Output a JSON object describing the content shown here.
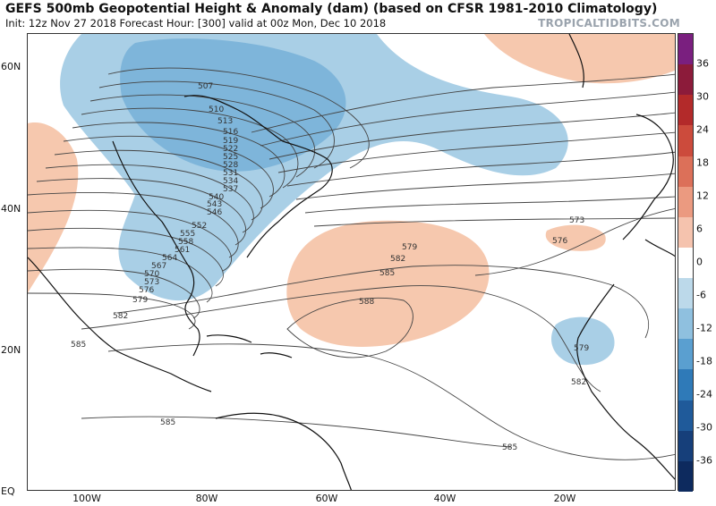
{
  "header": {
    "title": "GEFS 500mb Geopotential Height & Anomaly (dam) (based on CFSR 1981-2010 Climatology)",
    "subtitle": "Init: 12z Nov 27 2018   Forecast Hour: [300]   valid at 00z Mon, Dec 10 2018",
    "brand": "TROPICALTIDBITS.COM"
  },
  "axes": {
    "lat_labels": [
      "60N",
      "40N",
      "20N",
      "EQ"
    ],
    "lon_labels": [
      "100W",
      "80W",
      "60W",
      "40W",
      "20W"
    ]
  },
  "colorbar": {
    "labels": [
      "36",
      "30",
      "24",
      "18",
      "12",
      "6",
      "0",
      "-6",
      "-12",
      "-18",
      "-24",
      "-30",
      "-36"
    ],
    "colors": [
      "#7a1f7f",
      "#8c1b3a",
      "#b32a2a",
      "#cc4b3c",
      "#dc7059",
      "#eb9a80",
      "#f5c3ae",
      "#ffffff",
      "#bcd9ea",
      "#8fc0df",
      "#5a9fd0",
      "#2f7ab8",
      "#1f5a9a",
      "#163f7a",
      "#0d2a5e"
    ]
  },
  "contour_labels": {
    "stack_north": [
      "507",
      "510",
      "513",
      "516",
      "519",
      "522",
      "525",
      "528",
      "531",
      "534",
      "537",
      "540",
      "543",
      "546"
    ],
    "stack_south": [
      "552",
      "555",
      "558",
      "561",
      "564",
      "567",
      "570",
      "573",
      "576",
      "579",
      "582",
      "585"
    ],
    "other": [
      "573",
      "576",
      "579",
      "582",
      "585",
      "588",
      "579",
      "582",
      "585",
      "585"
    ]
  },
  "anomaly_colors": {
    "negative": "#a9cfe6",
    "negative_core": "#7eb5da",
    "positive": "#f6c8ae"
  }
}
